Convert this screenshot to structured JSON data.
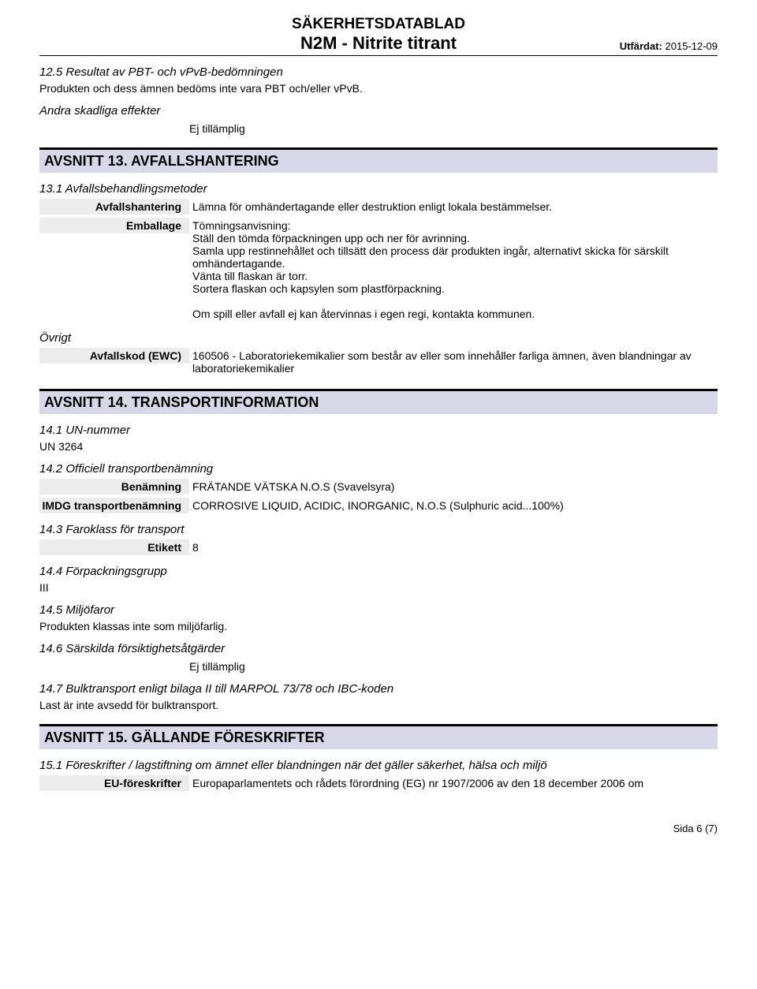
{
  "header": {
    "doc_title": "SÄKERHETSDATABLAD",
    "product_title": "N2M - Nitrite titrant",
    "issued_label": "Utfärdat:",
    "issued_date": "2015-12-09"
  },
  "s12_5": {
    "title": "12.5 Resultat av PBT- och vPvB-bedömningen",
    "text": "Produkten och dess ämnen bedöms inte vara PBT och/eller vPvB."
  },
  "other_harmful": {
    "title": "Andra skadliga effekter",
    "value": "Ej tillämplig"
  },
  "s13": {
    "header": "AVSNITT 13. AVFALLSHANTERING",
    "s13_1_title": "13.1 Avfallsbehandlingsmetoder",
    "avfallshantering_label": "Avfallshantering",
    "avfallshantering_value": "Lämna för omhändertagande eller destruktion enligt lokala bestämmelser.",
    "emballage_label": "Emballage",
    "emballage_value": "Tömningsanvisning:\nStäll den tömda förpackningen upp och ner för avrinning.\nSamla upp restinnehållet och tillsätt den process där produkten ingår, alternativt skicka för särskilt omhändertagande.\nVänta till flaskan är torr.\nSortera flaskan och kapsylen som plastförpackning.\n\nOm spill eller avfall ej kan återvinnas i egen regi, kontakta kommunen.",
    "ovrigt_title": "Övrigt",
    "ewc_label": "Avfallskod (EWC)",
    "ewc_value": "160506 - Laboratoriekemikalier som består av eller som innehåller farliga ämnen, även blandningar av laboratoriekemikalier"
  },
  "s14": {
    "header": "AVSNITT 14. TRANSPORTINFORMATION",
    "s14_1_title": "14.1 UN-nummer",
    "s14_1_value": "UN 3264",
    "s14_2_title": "14.2 Officiell transportbenämning",
    "benamning_label": "Benämning",
    "benamning_value": "FRÄTANDE VÄTSKA N.O.S (Svavelsyra)",
    "imdg_label": "IMDG transportbenämning",
    "imdg_value": "CORROSIVE LIQUID, ACIDIC, INORGANIC, N.O.S (Sulphuric acid...100%)",
    "s14_3_title": "14.3 Faroklass för transport",
    "etikett_label": "Etikett",
    "etikett_value": "8",
    "s14_4_title": "14.4 Förpackningsgrupp",
    "s14_4_value": "III",
    "s14_5_title": "14.5 Miljöfaror",
    "s14_5_value": "Produkten klassas inte som miljöfarlig.",
    "s14_6_title": "14.6 Särskilda försiktighetsåtgärder",
    "s14_6_value": "Ej tillämplig",
    "s14_7_title": "14.7 Bulktransport enligt bilaga II till MARPOL 73/78 och IBC-koden",
    "s14_7_value": "Last är inte avsedd för bulktransport."
  },
  "s15": {
    "header": "AVSNITT 15. GÄLLANDE FÖRESKRIFTER",
    "s15_1_title": "15.1 Föreskrifter / lagstiftning om ämnet eller blandningen när det gäller säkerhet, hälsa och miljö",
    "eu_label": "EU-föreskrifter",
    "eu_value": "Europaparlamentets och rådets förordning (EG) nr 1907/2006 av den 18 december 2006 om"
  },
  "footer": {
    "page": "Sida 6 (7)"
  }
}
